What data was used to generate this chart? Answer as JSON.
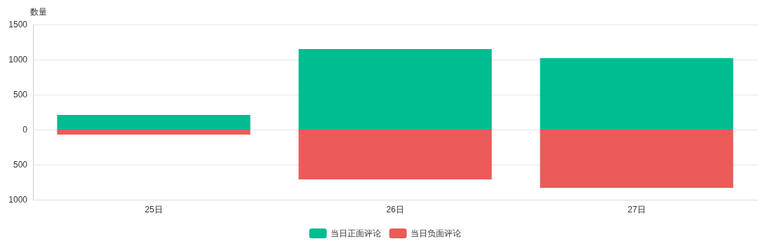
{
  "chart_data": {
    "type": "bar",
    "ylabel": "数量",
    "categories": [
      "25日",
      "26日",
      "27日"
    ],
    "stacked": true,
    "series": [
      {
        "name": "当日正面评论",
        "color": "#00bc91",
        "values": [
          210,
          1150,
          1020
        ]
      },
      {
        "name": "当日负面评论",
        "color": "#ea5b5a",
        "values": [
          -70,
          -710,
          -830
        ]
      }
    ],
    "ylim": [
      -1000,
      1500
    ],
    "yticks": [
      {
        "value": -1000,
        "label": "1000"
      },
      {
        "value": -500,
        "label": "500"
      },
      0,
      500,
      1000,
      1500
    ],
    "grid": "y",
    "legend": "bottom"
  }
}
